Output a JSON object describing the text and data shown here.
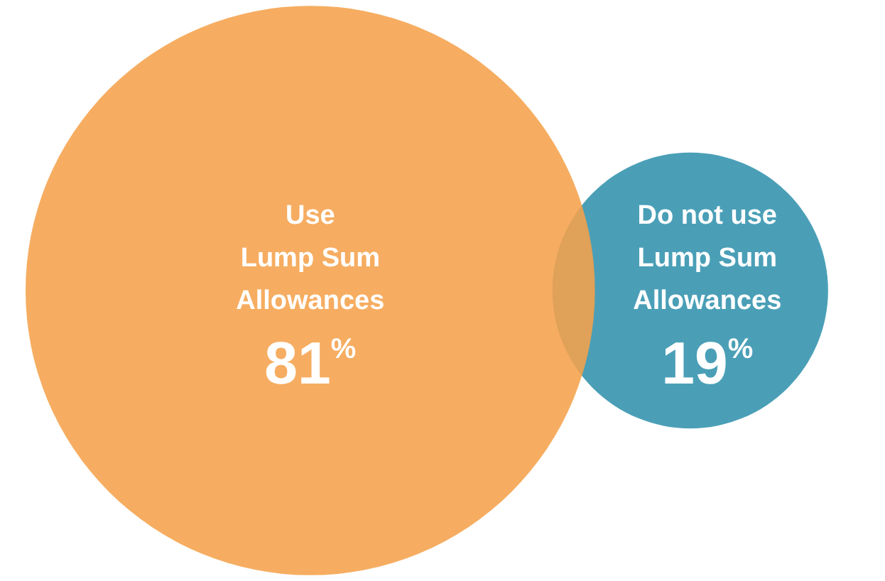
{
  "chart_data": {
    "type": "other",
    "categories": [
      "Use\nLump Sum\nAllowances",
      "Do not use\nLump Sum\nAllowances"
    ],
    "values": [
      81,
      19
    ],
    "value_labels": [
      "81%",
      "19%"
    ],
    "colors": [
      "#f5a24b",
      "#4a9fb7"
    ]
  }
}
